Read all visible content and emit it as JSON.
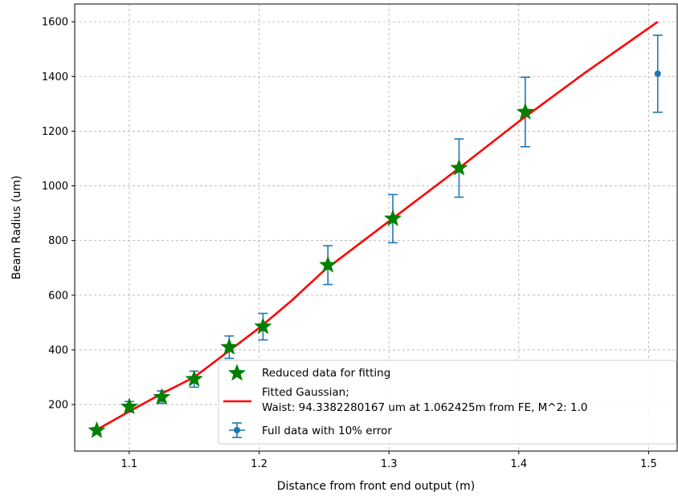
{
  "chart_data": {
    "type": "scatter",
    "title": "",
    "xlabel": "Distance from front end output (m)",
    "ylabel": "Beam Radius (um)",
    "xlim": [
      1.058,
      1.522
    ],
    "ylim": [
      30,
      1665
    ],
    "x_ticks": [
      1.1,
      1.2,
      1.3,
      1.4,
      1.5
    ],
    "x_tick_labels": [
      "1.1",
      "1.2",
      "1.3",
      "1.4",
      "1.5"
    ],
    "y_ticks": [
      200,
      400,
      600,
      800,
      1000,
      1200,
      1400,
      1600
    ],
    "y_tick_labels": [
      "200",
      "400",
      "600",
      "800",
      "1000",
      "1200",
      "1400",
      "1600"
    ],
    "grid": true,
    "legend_position": "bottom-right",
    "series": [
      {
        "name": "Reduced data for fitting",
        "kind": "star-markers",
        "color": "#008000",
        "x": [
          1.075,
          1.1,
          1.125,
          1.15,
          1.177,
          1.203,
          1.253,
          1.303,
          1.354,
          1.405
        ],
        "y": [
          105,
          192,
          227,
          293,
          410,
          485,
          710,
          880,
          1065,
          1270
        ]
      },
      {
        "name": "Fitted Gaussian;\nWaist: 94.3382280167 um at 1.062425m from FE, M^2: 1.0",
        "name_lines": [
          "Fitted Gaussian;",
          "Waist: 94.3382280167 um at 1.062425m from FE, M^2: 1.0"
        ],
        "kind": "line",
        "color": "#ff0000",
        "x": [
          1.075,
          1.1,
          1.125,
          1.15,
          1.175,
          1.2,
          1.225,
          1.25,
          1.3,
          1.35,
          1.4,
          1.45,
          1.507
        ],
        "y": [
          108,
          175,
          240,
          300,
          390,
          480,
          580,
          690,
          870,
          1050,
          1235,
          1410,
          1600
        ]
      },
      {
        "name": "Full data with 10% error",
        "kind": "errorbar",
        "color": "#1f77b4",
        "x": [
          1.075,
          1.1,
          1.125,
          1.15,
          1.177,
          1.203,
          1.253,
          1.303,
          1.354,
          1.405,
          1.507
        ],
        "y": [
          105,
          192,
          227,
          293,
          410,
          485,
          710,
          880,
          1065,
          1270,
          1410
        ],
        "yerr": [
          10.5,
          19.2,
          22.7,
          29.3,
          41,
          48.5,
          71,
          88,
          106.5,
          127,
          141
        ]
      }
    ]
  }
}
